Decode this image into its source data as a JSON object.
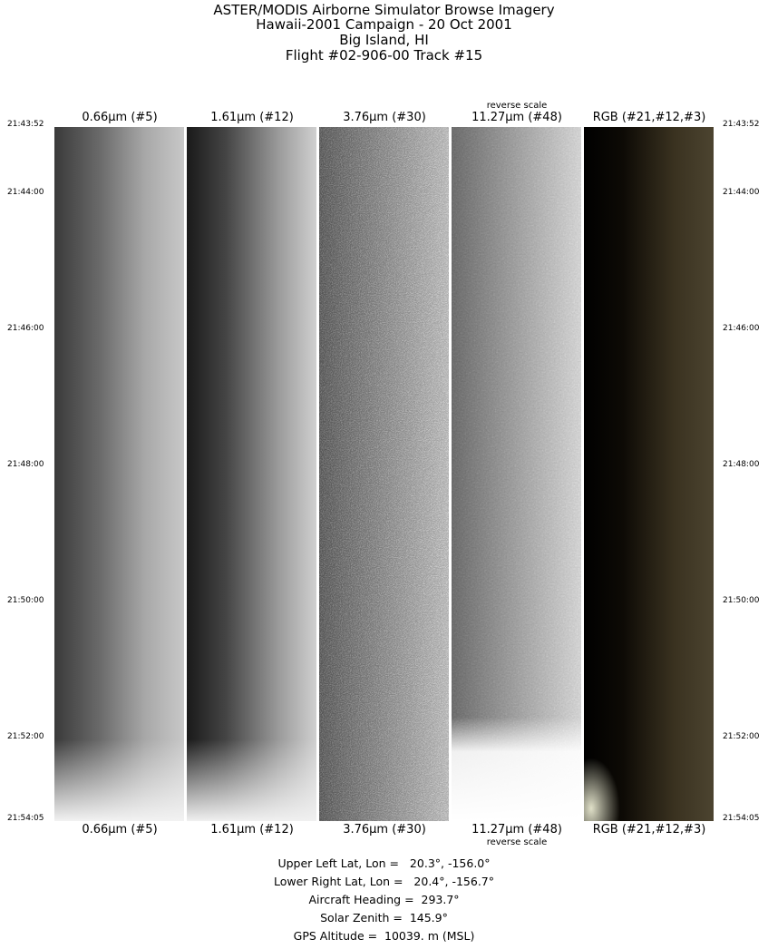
{
  "title_lines": [
    "ASTER/MODIS Airborne Simulator Browse Imagery",
    "Hawaii-2001 Campaign - 20 Oct 2001",
    "Big Island, HI",
    "Flight #02-906-00 Track #15"
  ],
  "panels": [
    {
      "label": "0.66µm (#5)",
      "note": ""
    },
    {
      "label": "1.61µm (#12)",
      "note": ""
    },
    {
      "label": "3.76µm (#30)",
      "note": ""
    },
    {
      "label": "11.27µm (#48)",
      "note": "reverse scale"
    },
    {
      "label": "RGB (#21,#12,#3)",
      "note": ""
    }
  ],
  "times": [
    "21:43:52",
    "21:44:00",
    "21:46:00",
    "21:48:00",
    "21:50:00",
    "21:52:00",
    "21:54:05"
  ],
  "info": {
    "upper_left": "Upper Left Lat, Lon =   20.3°, -156.0°",
    "lower_right": "Lower Right Lat, Lon =   20.4°, -156.7°",
    "heading": "Aircraft Heading =  293.7°",
    "zenith": "Solar Zenith =  145.9°",
    "altitude": "GPS Altitude =  10039. m (MSL)"
  }
}
